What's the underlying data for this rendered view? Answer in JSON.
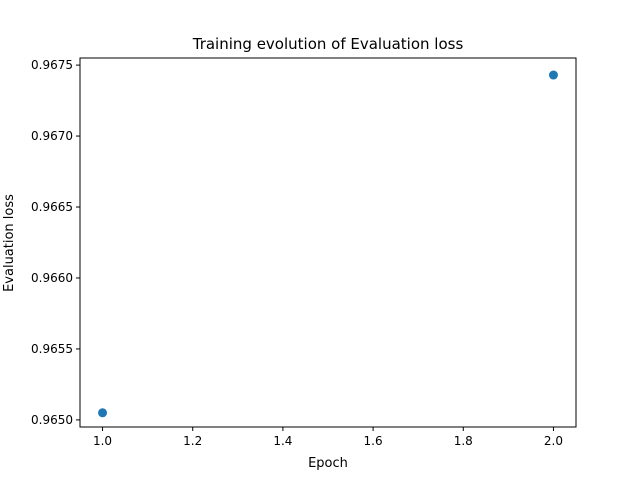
{
  "chart_data": {
    "type": "scatter",
    "title": "Training evolution of Evaluation loss",
    "xlabel": "Epoch",
    "ylabel": "Evaluation loss",
    "xlim": [
      0.95,
      2.05
    ],
    "ylim": [
      0.96495,
      0.96755
    ],
    "xticks": [
      1.0,
      1.2,
      1.4,
      1.6,
      1.8,
      2.0
    ],
    "xtick_labels": [
      "1.0",
      "1.2",
      "1.4",
      "1.6",
      "1.8",
      "2.0"
    ],
    "yticks": [
      0.965,
      0.9655,
      0.966,
      0.9665,
      0.967,
      0.9675
    ],
    "ytick_labels": [
      "0.9650",
      "0.9655",
      "0.9660",
      "0.9665",
      "0.9670",
      "0.9675"
    ],
    "grid": false,
    "series": [
      {
        "name": "Evaluation loss",
        "color": "#1f77b4",
        "x": [
          1.0,
          2.0
        ],
        "y": [
          0.96505,
          0.96743
        ]
      }
    ]
  }
}
